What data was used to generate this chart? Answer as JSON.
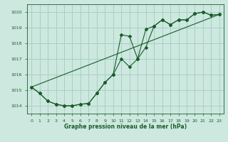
{
  "title": "Graphe pression niveau de la mer (hPa)",
  "bg_color": "#cce8df",
  "grid_color": "#aacfc5",
  "line_color": "#1a5c2a",
  "xmin": -0.5,
  "xmax": 23.5,
  "ymin": 1013.5,
  "ymax": 1020.5,
  "yticks": [
    1014,
    1015,
    1016,
    1017,
    1018,
    1019,
    1020
  ],
  "xticks": [
    0,
    1,
    2,
    3,
    4,
    5,
    6,
    7,
    8,
    9,
    10,
    11,
    12,
    13,
    14,
    15,
    16,
    17,
    18,
    19,
    20,
    21,
    22,
    23
  ],
  "series1_x": [
    0,
    1,
    2,
    3,
    4,
    5,
    6,
    7,
    8,
    9,
    10,
    11,
    12,
    13,
    14,
    15,
    16,
    17,
    18,
    19,
    20,
    21,
    22,
    23
  ],
  "series1_y": [
    1015.2,
    1014.8,
    1014.3,
    1014.1,
    1014.0,
    1014.0,
    1014.1,
    1014.15,
    1014.8,
    1015.5,
    1016.0,
    1018.55,
    1018.45,
    1017.0,
    1017.75,
    1019.1,
    1019.5,
    1019.2,
    1019.5,
    1019.5,
    1019.9,
    1020.0,
    1019.8,
    1019.85
  ],
  "series2_x": [
    0,
    1,
    2,
    3,
    4,
    5,
    6,
    7,
    8,
    9,
    10,
    11,
    12,
    13,
    14,
    15,
    16,
    17,
    18,
    19,
    20,
    21,
    22,
    23
  ],
  "series2_y": [
    1015.2,
    1014.8,
    1014.3,
    1014.1,
    1014.0,
    1014.0,
    1014.1,
    1014.15,
    1014.8,
    1015.5,
    1016.0,
    1017.0,
    1016.5,
    1017.0,
    1018.9,
    1019.1,
    1019.5,
    1019.2,
    1019.5,
    1019.5,
    1019.9,
    1020.0,
    1019.8,
    1019.85
  ],
  "series3_x": [
    0,
    23
  ],
  "series3_y": [
    1015.2,
    1019.85
  ]
}
